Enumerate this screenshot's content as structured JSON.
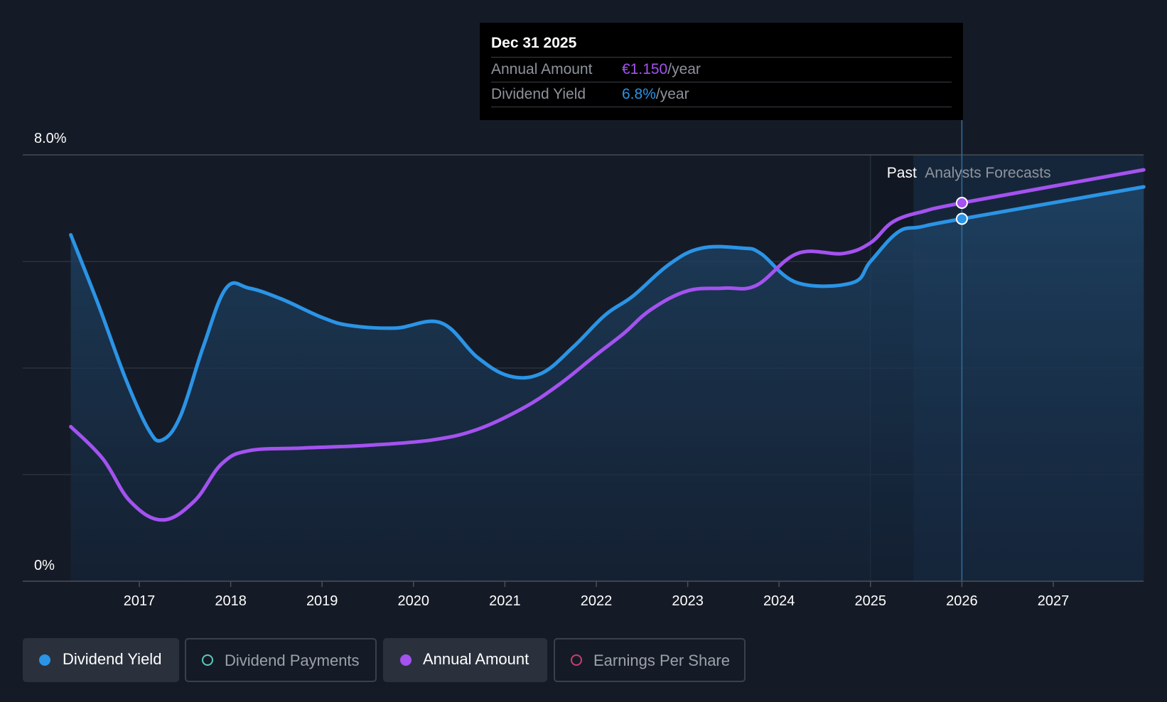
{
  "colors": {
    "background": "#151b26",
    "yield": "#2b94e6",
    "annual": "#a452f0",
    "payments": "#5fc8bd",
    "eps": "#c83f6e"
  },
  "tooltip": {
    "date": "Dec 31 2025",
    "annual_label": "Annual Amount",
    "annual_value": "€1.150",
    "annual_unit": "/year",
    "yield_label": "Dividend Yield",
    "yield_value": "6.8%",
    "yield_unit": "/year"
  },
  "legend": [
    {
      "label": "Dividend Yield",
      "active": true,
      "marker": "filled-dot",
      "color": "#2b94e6"
    },
    {
      "label": "Dividend Payments",
      "active": false,
      "marker": "hollow-dot",
      "color": "#5fc8bd"
    },
    {
      "label": "Annual Amount",
      "active": true,
      "marker": "filled-dot",
      "color": "#a452f0"
    },
    {
      "label": "Earnings Per Share",
      "active": false,
      "marker": "hollow-dot",
      "color": "#c83f6e"
    }
  ],
  "chart_data": {
    "type": "line",
    "ylim": [
      0,
      8
    ],
    "xlim": [
      2015.75,
      2027.99
    ],
    "y_tick_labels": [
      {
        "value": 8,
        "label": "8.0%"
      },
      {
        "value": 0,
        "label": "0%"
      }
    ],
    "y_gridlines": [
      8,
      6,
      4,
      2
    ],
    "x_ticks": [
      2017,
      2018,
      2019,
      2020,
      2021,
      2022,
      2023,
      2024,
      2025,
      2026,
      2027
    ],
    "past_label": "Past",
    "forecast_label": "Analysts Forecasts",
    "past_region": [
      2025.0,
      2025.47
    ],
    "forecast_start": 2025.47,
    "cursor_x": 2026.0,
    "series": [
      {
        "name": "Dividend Yield",
        "color": "#2b94e6",
        "filled": true,
        "points": [
          [
            2016.25,
            6.5
          ],
          [
            2016.55,
            5.2
          ],
          [
            2016.85,
            3.8
          ],
          [
            2017.1,
            2.85
          ],
          [
            2017.25,
            2.65
          ],
          [
            2017.45,
            3.1
          ],
          [
            2017.7,
            4.4
          ],
          [
            2017.95,
            5.5
          ],
          [
            2018.2,
            5.5
          ],
          [
            2018.55,
            5.3
          ],
          [
            2019.0,
            4.95
          ],
          [
            2019.3,
            4.8
          ],
          [
            2019.8,
            4.75
          ],
          [
            2020.3,
            4.85
          ],
          [
            2020.7,
            4.2
          ],
          [
            2021.05,
            3.85
          ],
          [
            2021.4,
            3.9
          ],
          [
            2021.75,
            4.4
          ],
          [
            2022.1,
            5.0
          ],
          [
            2022.4,
            5.35
          ],
          [
            2022.8,
            5.95
          ],
          [
            2023.15,
            6.25
          ],
          [
            2023.6,
            6.25
          ],
          [
            2023.8,
            6.15
          ],
          [
            2024.2,
            5.6
          ],
          [
            2024.8,
            5.6
          ],
          [
            2025.0,
            6.0
          ],
          [
            2025.3,
            6.55
          ],
          [
            2025.55,
            6.65
          ],
          [
            2026.0,
            6.8
          ],
          [
            2027.99,
            7.4
          ]
        ]
      },
      {
        "name": "Annual Amount",
        "color": "#a452f0",
        "filled": false,
        "points": [
          [
            2016.25,
            2.9
          ],
          [
            2016.6,
            2.3
          ],
          [
            2016.9,
            1.5
          ],
          [
            2017.25,
            1.15
          ],
          [
            2017.6,
            1.5
          ],
          [
            2017.9,
            2.2
          ],
          [
            2018.2,
            2.45
          ],
          [
            2018.8,
            2.5
          ],
          [
            2019.5,
            2.55
          ],
          [
            2020.2,
            2.65
          ],
          [
            2020.7,
            2.85
          ],
          [
            2021.2,
            3.25
          ],
          [
            2021.6,
            3.7
          ],
          [
            2022.0,
            4.25
          ],
          [
            2022.3,
            4.65
          ],
          [
            2022.6,
            5.1
          ],
          [
            2023.0,
            5.45
          ],
          [
            2023.4,
            5.5
          ],
          [
            2023.75,
            5.55
          ],
          [
            2024.2,
            6.15
          ],
          [
            2024.7,
            6.15
          ],
          [
            2025.0,
            6.35
          ],
          [
            2025.25,
            6.75
          ],
          [
            2025.6,
            6.95
          ],
          [
            2026.0,
            7.1
          ],
          [
            2027.99,
            7.72
          ]
        ]
      }
    ]
  }
}
